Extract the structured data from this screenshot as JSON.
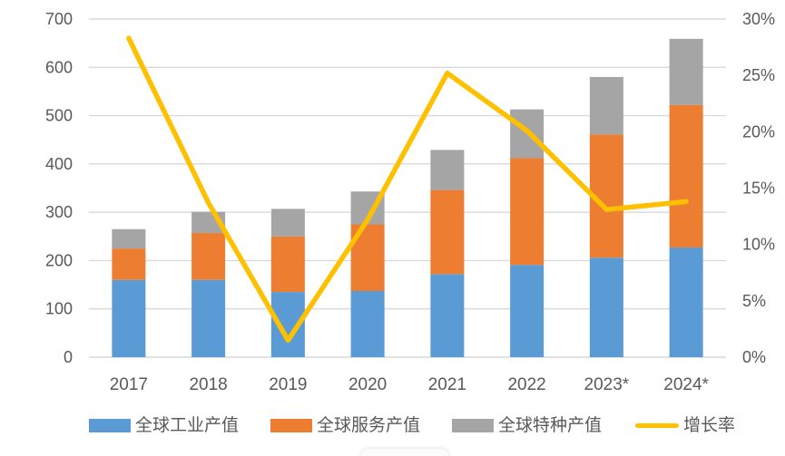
{
  "chart_data": {
    "type": "bar",
    "subtype": "stacked-column-with-line",
    "title": "",
    "categories": [
      "2017",
      "2018",
      "2019",
      "2020",
      "2021",
      "2022",
      "2023*",
      "2024*"
    ],
    "series": [
      {
        "name": "全球工业产值",
        "type": "bar",
        "color": "#5B9BD5",
        "values": [
          160,
          160,
          135,
          137,
          172,
          191,
          206,
          227
        ]
      },
      {
        "name": "全球服务产值",
        "type": "bar",
        "color": "#ED7D31",
        "values": [
          65,
          97,
          115,
          138,
          174,
          221,
          255,
          295
        ]
      },
      {
        "name": "全球特种产值",
        "type": "bar",
        "color": "#A5A5A5",
        "values": [
          40,
          44,
          57,
          68,
          83,
          101,
          119,
          137
        ]
      },
      {
        "name": "增长率",
        "type": "line",
        "axis": "right",
        "color": "#FFC000",
        "values": [
          28.3,
          13.7,
          1.5,
          12.2,
          25.2,
          20.1,
          13.1,
          13.8
        ]
      }
    ],
    "stacked_totals": [
      265,
      301,
      307,
      343,
      429,
      513,
      580,
      659
    ],
    "left_axis": {
      "min": 0,
      "max": 700,
      "step": 100,
      "ticks": [
        "0",
        "100",
        "200",
        "300",
        "400",
        "500",
        "600",
        "700"
      ]
    },
    "right_axis": {
      "min": 0,
      "max": 30,
      "step": 5,
      "ticks": [
        "0%",
        "5%",
        "10%",
        "15%",
        "20%",
        "25%",
        "30%"
      ]
    },
    "grid": true,
    "legend_position": "bottom",
    "colors": {
      "grid": "#D9D9D9",
      "axis_text": "#595959",
      "background": "#FFFFFF"
    }
  },
  "legend": {
    "items": [
      {
        "label": "全球工业产值",
        "color": "#5B9BD5",
        "swatch": "bar"
      },
      {
        "label": "全球服务产值",
        "color": "#ED7D31",
        "swatch": "bar"
      },
      {
        "label": "全球特种产值",
        "color": "#A5A5A5",
        "swatch": "bar"
      },
      {
        "label": "增长率",
        "color": "#FFC000",
        "swatch": "line"
      }
    ]
  }
}
